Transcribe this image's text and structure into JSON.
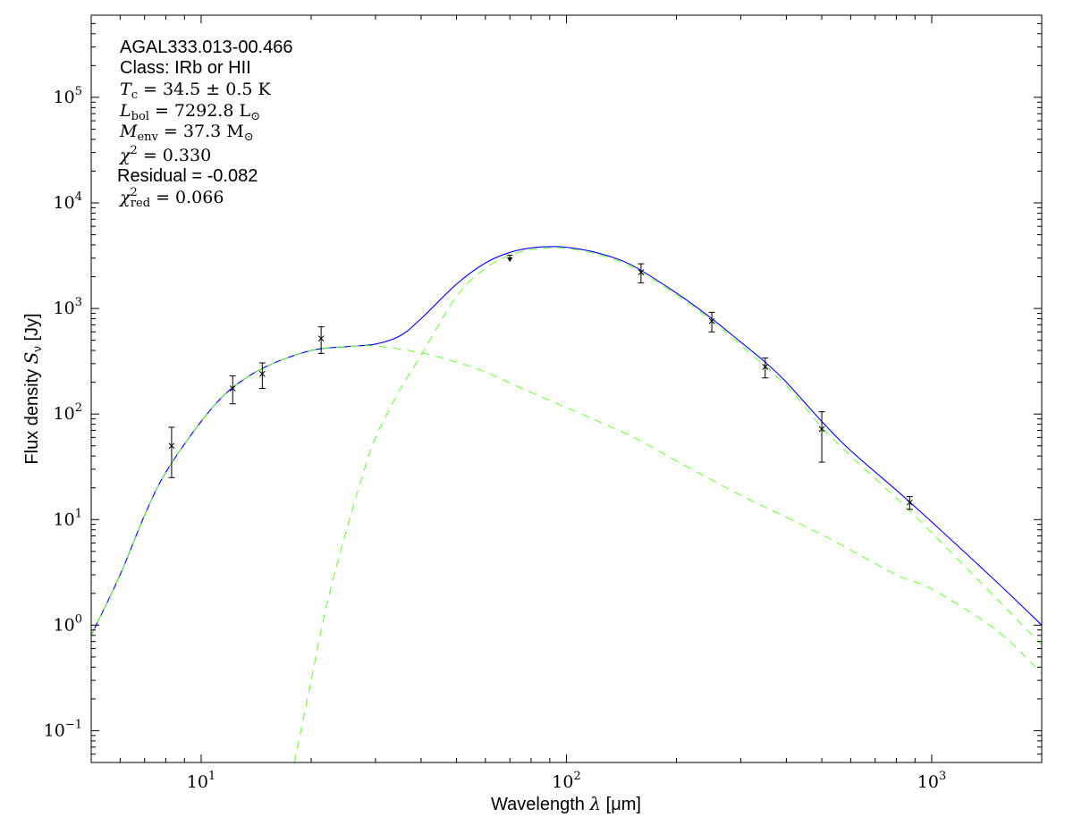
{
  "chart_data": {
    "type": "line",
    "xlabel_text": "Wavelength ",
    "xlabel_symbol": "λ",
    "xlabel_unit": " [μm]",
    "ylabel_text": "Flux density ",
    "ylabel_symbol": "S",
    "ylabel_sub": "ν",
    "ylabel_unit": " [Jy]",
    "x_scale": "log",
    "y_scale": "log",
    "xlim": [
      5,
      2000
    ],
    "ylim": [
      0.05,
      600000
    ],
    "grid": false,
    "x_ticks": [
      {
        "value": 10,
        "base": "10",
        "exp": "1"
      },
      {
        "value": 100,
        "base": "10",
        "exp": "2"
      },
      {
        "value": 1000,
        "base": "10",
        "exp": "3"
      }
    ],
    "y_ticks": [
      {
        "value": 0.1,
        "base": "10",
        "exp": "−1"
      },
      {
        "value": 1,
        "base": "10",
        "exp": "0"
      },
      {
        "value": 10,
        "base": "10",
        "exp": "1"
      },
      {
        "value": 100,
        "base": "10",
        "exp": "2"
      },
      {
        "value": 1000,
        "base": "10",
        "exp": "3"
      },
      {
        "value": 10000,
        "base": "10",
        "exp": "4"
      },
      {
        "value": 100000,
        "base": "10",
        "exp": "5"
      }
    ],
    "annotations": {
      "source": "AGAL333.013-00.466",
      "class": "Class: IRb or HII",
      "tc_sym": "T",
      "tc_sub": "c",
      "tc_val": " = 34.5 ± 0.5 K",
      "lbol_sym": "L",
      "lbol_sub": "bol",
      "lbol_val": " = 7292.8 L",
      "lbol_unit_sub": "⊙",
      "menv_sym": "M",
      "menv_sub": "env",
      "menv_val": " = 37.3 M",
      "menv_unit_sub": "⊙",
      "chi_sym": "χ",
      "chi_sup": "2",
      "chi_val": " = 0.330",
      "residual": "Residual = -0.082",
      "chired_sym": "χ",
      "chired_sup": "2",
      "chired_sub": "red",
      "chired_val": " = 0.066"
    },
    "colors": {
      "total_fit": "#0000ff",
      "components": "#66ff33",
      "points": "#000000"
    },
    "series": [
      {
        "style": "solid",
        "x": [
          5,
          6,
          7,
          8,
          10,
          12,
          15,
          20,
          25,
          30,
          35,
          40,
          50,
          60,
          70,
          80,
          90,
          100,
          120,
          150,
          200,
          250,
          300,
          350,
          400,
          500,
          600,
          800,
          1000,
          1500,
          2000
        ],
        "y": [
          0.8,
          3.0,
          11,
          28,
          85,
          170,
          280,
          400,
          435,
          460,
          550,
          800,
          1700,
          2700,
          3400,
          3750,
          3850,
          3800,
          3400,
          2600,
          1400,
          800,
          480,
          310,
          200,
          85,
          45,
          19,
          9.5,
          2.6,
          1.0
        ]
      },
      {
        "style": "dashed",
        "x": [
          5,
          6,
          7,
          8,
          10,
          12,
          15,
          20,
          25,
          30,
          40,
          50,
          60,
          80,
          100,
          150,
          200,
          300,
          500,
          800,
          1000,
          1500,
          2000
        ],
        "y": [
          0.8,
          3.0,
          11,
          28,
          85,
          170,
          280,
          400,
          435,
          440,
          380,
          310,
          250,
          160,
          115,
          62,
          36,
          17,
          7.2,
          3.0,
          2.2,
          0.9,
          0.35
        ]
      },
      {
        "style": "dashed",
        "x": [
          18,
          20,
          22,
          25,
          28,
          30,
          35,
          40,
          50,
          60,
          70,
          80,
          90,
          100,
          120,
          150,
          200,
          250,
          300,
          400,
          500,
          600,
          800,
          1000,
          1500,
          2000
        ],
        "y": [
          0.05,
          0.3,
          1.5,
          8,
          30,
          60,
          170,
          360,
          1300,
          2400,
          3200,
          3600,
          3750,
          3700,
          3300,
          2500,
          1350,
          760,
          450,
          185,
          75,
          40,
          16,
          7.5,
          1.8,
          0.65
        ]
      }
    ],
    "points": [
      {
        "x": 8.3,
        "y": 50,
        "ylo": 25,
        "yhi": 75,
        "upper_limit": false
      },
      {
        "x": 12.2,
        "y": 175,
        "ylo": 125,
        "yhi": 230,
        "upper_limit": false
      },
      {
        "x": 14.7,
        "y": 240,
        "ylo": 175,
        "yhi": 305,
        "upper_limit": false
      },
      {
        "x": 21.3,
        "y": 520,
        "ylo": 375,
        "yhi": 670,
        "upper_limit": false
      },
      {
        "x": 70,
        "y": 3200,
        "ylo": 2800,
        "yhi": 3200,
        "upper_limit": true
      },
      {
        "x": 160,
        "y": 2200,
        "ylo": 1750,
        "yhi": 2650,
        "upper_limit": false
      },
      {
        "x": 250,
        "y": 760,
        "ylo": 600,
        "yhi": 920,
        "upper_limit": false
      },
      {
        "x": 350,
        "y": 280,
        "ylo": 220,
        "yhi": 340,
        "upper_limit": false
      },
      {
        "x": 500,
        "y": 72,
        "ylo": 35,
        "yhi": 105,
        "upper_limit": false
      },
      {
        "x": 870,
        "y": 14.5,
        "ylo": 12.5,
        "yhi": 16.5,
        "upper_limit": false
      }
    ]
  }
}
